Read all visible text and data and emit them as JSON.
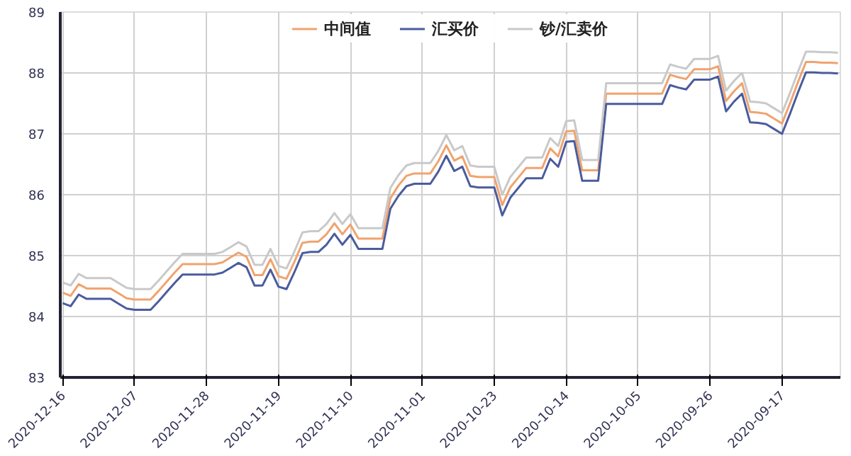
{
  "chart_data": {
    "type": "line",
    "categories": [
      "2020-12-16",
      null,
      null,
      null,
      null,
      null,
      null,
      null,
      null,
      "2020-12-07",
      null,
      null,
      null,
      null,
      null,
      null,
      null,
      null,
      "2020-11-28",
      null,
      null,
      null,
      null,
      null,
      null,
      null,
      null,
      "2020-11-19",
      null,
      null,
      null,
      null,
      null,
      null,
      null,
      null,
      "2020-11-10",
      null,
      null,
      null,
      null,
      null,
      null,
      null,
      null,
      "2020-11-01",
      null,
      null,
      null,
      null,
      null,
      null,
      null,
      null,
      "2020-10-23",
      null,
      null,
      null,
      null,
      null,
      null,
      null,
      null,
      "2020-10-14",
      null,
      null,
      null,
      null,
      null,
      null,
      null,
      null,
      "2020-10-05",
      null,
      null,
      null,
      null,
      null,
      null,
      null,
      null,
      "2020-09-26",
      null,
      null,
      null,
      null,
      null,
      null,
      null,
      null,
      "2020-09-17",
      null,
      null,
      null,
      null,
      null,
      null,
      null
    ],
    "series": [
      {
        "name": "中间值",
        "color": "#f0a36e",
        "values": [
          84.39,
          84.34,
          84.53,
          84.46,
          84.46,
          84.46,
          84.46,
          84.38,
          84.3,
          84.28,
          84.28,
          84.28,
          84.42,
          84.57,
          84.72,
          84.86,
          84.86,
          84.86,
          84.86,
          84.86,
          84.89,
          84.97,
          85.05,
          84.98,
          84.68,
          84.68,
          84.94,
          84.66,
          84.62,
          84.9,
          85.21,
          85.23,
          85.23,
          85.35,
          85.53,
          85.35,
          85.51,
          85.28,
          85.28,
          85.28,
          85.28,
          85.94,
          86.15,
          86.31,
          86.35,
          86.35,
          86.35,
          86.55,
          86.81,
          86.56,
          86.63,
          86.31,
          86.29,
          86.29,
          86.29,
          85.83,
          86.12,
          86.28,
          86.44,
          86.44,
          86.44,
          86.76,
          86.63,
          87.04,
          87.05,
          86.4,
          86.4,
          86.4,
          87.66,
          87.66,
          87.66,
          87.66,
          87.66,
          87.66,
          87.66,
          87.66,
          87.97,
          87.93,
          87.9,
          88.06,
          88.06,
          88.06,
          88.11,
          87.54,
          87.7,
          87.83,
          87.36,
          87.35,
          87.33,
          87.25,
          87.17,
          87.5,
          87.85,
          88.18,
          88.18,
          88.17,
          88.17,
          88.16
        ]
      },
      {
        "name": "汇买价",
        "color": "#4a5c9e",
        "values": [
          84.22,
          84.17,
          84.36,
          84.29,
          84.29,
          84.29,
          84.29,
          84.21,
          84.13,
          84.11,
          84.11,
          84.11,
          84.25,
          84.4,
          84.55,
          84.69,
          84.69,
          84.69,
          84.69,
          84.69,
          84.72,
          84.8,
          84.88,
          84.81,
          84.51,
          84.51,
          84.77,
          84.49,
          84.45,
          84.73,
          85.04,
          85.06,
          85.06,
          85.18,
          85.36,
          85.18,
          85.34,
          85.11,
          85.11,
          85.11,
          85.11,
          85.77,
          85.98,
          86.14,
          86.18,
          86.18,
          86.18,
          86.38,
          86.64,
          86.39,
          86.46,
          86.14,
          86.12,
          86.12,
          86.12,
          85.66,
          85.95,
          86.11,
          86.27,
          86.27,
          86.27,
          86.59,
          86.46,
          86.87,
          86.88,
          86.23,
          86.23,
          86.23,
          87.49,
          87.49,
          87.49,
          87.49,
          87.49,
          87.49,
          87.49,
          87.49,
          87.8,
          87.76,
          87.73,
          87.89,
          87.89,
          87.89,
          87.94,
          87.37,
          87.53,
          87.66,
          87.19,
          87.18,
          87.16,
          87.08,
          87.0,
          87.33,
          87.68,
          88.01,
          88.01,
          88.0,
          88.0,
          87.99
        ]
      },
      {
        "name": "钞/汇卖价",
        "color": "#c9c9c9",
        "values": [
          84.56,
          84.51,
          84.7,
          84.63,
          84.63,
          84.63,
          84.63,
          84.55,
          84.47,
          84.45,
          84.45,
          84.45,
          84.59,
          84.74,
          84.89,
          85.03,
          85.03,
          85.03,
          85.03,
          85.03,
          85.06,
          85.14,
          85.22,
          85.15,
          84.85,
          84.85,
          85.11,
          84.83,
          84.79,
          85.07,
          85.38,
          85.4,
          85.4,
          85.52,
          85.7,
          85.52,
          85.68,
          85.45,
          85.45,
          85.45,
          85.45,
          86.11,
          86.32,
          86.48,
          86.52,
          86.52,
          86.52,
          86.72,
          86.98,
          86.73,
          86.8,
          86.48,
          86.46,
          86.46,
          86.46,
          86.0,
          86.29,
          86.45,
          86.61,
          86.61,
          86.61,
          86.93,
          86.8,
          87.21,
          87.22,
          86.57,
          86.57,
          86.57,
          87.83,
          87.83,
          87.83,
          87.83,
          87.83,
          87.83,
          87.83,
          87.83,
          88.14,
          88.1,
          88.07,
          88.23,
          88.23,
          88.23,
          88.28,
          87.71,
          87.87,
          88.0,
          87.53,
          87.52,
          87.5,
          87.42,
          87.34,
          87.67,
          88.02,
          88.35,
          88.35,
          88.34,
          88.34,
          88.33
        ]
      }
    ],
    "ylim": [
      83,
      89
    ],
    "yticks": [
      83,
      84,
      85,
      86,
      87,
      88,
      89
    ],
    "grid": true,
    "legend": "top",
    "marker": "none",
    "line_style": "solid"
  }
}
